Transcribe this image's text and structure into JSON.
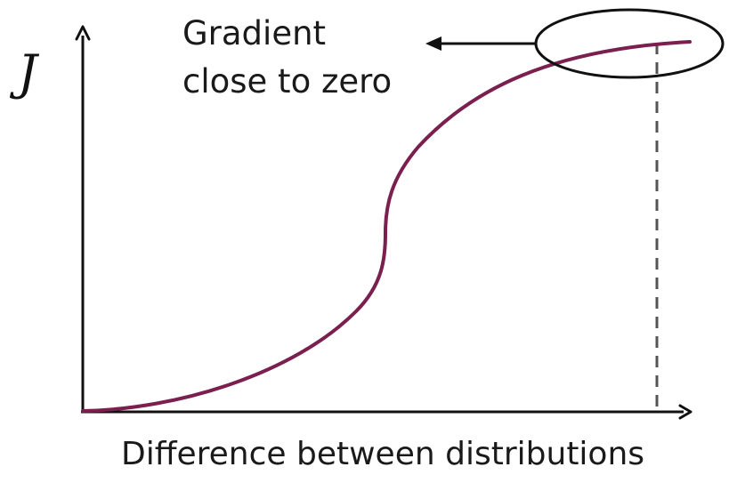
{
  "diagram": {
    "y_axis_label": "J",
    "x_axis_label": "Difference between distributions",
    "annotation": {
      "line1": "Gradient",
      "line2": "close to zero"
    }
  },
  "colors": {
    "curve": "#7a1f4e",
    "axes": "#111111",
    "dashed_line": "#555555",
    "annotation": "#111111",
    "background": "#ffffff"
  }
}
